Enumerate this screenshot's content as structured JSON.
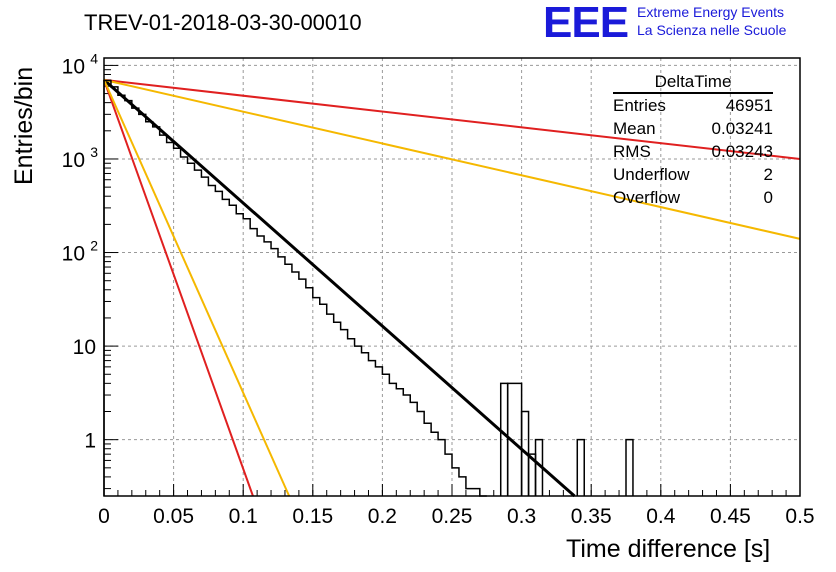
{
  "header": {
    "title": "TREV-01-2018-03-30-00010",
    "logo_letters": "EEE",
    "logo_line1": "Extreme Energy Events",
    "logo_line2": "La Scienza nelle Scuole"
  },
  "stats_box": {
    "title": "DeltaTime",
    "rows": [
      {
        "label": "Entries",
        "value": "46951"
      },
      {
        "label": "Mean",
        "value": "0.03241"
      },
      {
        "label": "RMS",
        "value": "0.03243"
      },
      {
        "label": "Underflow",
        "value": "2"
      },
      {
        "label": "Overflow",
        "value": "0"
      }
    ]
  },
  "colors": {
    "histogram": "#000000",
    "fit": "#000000",
    "red": "#e02020",
    "yellow": "#f5b800",
    "grid": "#9a9a9a",
    "logo": "#1a1ad9"
  },
  "chart_data": {
    "type": "histogram",
    "xlabel": "Time difference [s]",
    "ylabel": "Entries/bin",
    "xlim": [
      0,
      0.5
    ],
    "ylim": [
      0.25,
      12000
    ],
    "yscale": "log",
    "grid": true,
    "x_ticks": [
      "0",
      "0.05",
      "0.1",
      "0.15",
      "0.2",
      "0.25",
      "0.3",
      "0.35",
      "0.4",
      "0.45",
      "0.5"
    ],
    "y_ticks": [
      {
        "label": "1",
        "value": 1
      },
      {
        "label": "10",
        "value": 10
      },
      {
        "label": "10",
        "sup": "2",
        "value": 100
      },
      {
        "label": "10",
        "sup": "3",
        "value": 1000
      },
      {
        "label": "10",
        "sup": "4",
        "value": 10000
      }
    ],
    "bin_width": 0.005,
    "bin_values": [
      6900,
      5900,
      4800,
      4200,
      3500,
      3000,
      2500,
      2200,
      1800,
      1500,
      1300,
      1050,
      900,
      760,
      640,
      520,
      450,
      370,
      320,
      260,
      230,
      180,
      150,
      130,
      110,
      90,
      75,
      62,
      52,
      42,
      33,
      28,
      22,
      18,
      15,
      12,
      10,
      8.5,
      7,
      6,
      5,
      4,
      3.5,
      3,
      2.5,
      2,
      1.5,
      1.2,
      1,
      0.7,
      0.5,
      0.4,
      0.3,
      0.3,
      0.2
    ],
    "bin_values_note_free": true,
    "fit_curves": [
      {
        "color": "black",
        "points": [
          [
            0,
            7000
          ],
          [
            0.338,
            0.25
          ]
        ]
      },
      {
        "color": "red",
        "points": [
          [
            0,
            7000
          ],
          [
            0.5,
            1000
          ]
        ]
      },
      {
        "color": "yellow",
        "points": [
          [
            0,
            7000
          ],
          [
            0.5,
            140
          ]
        ]
      },
      {
        "color": "red",
        "points": [
          [
            0,
            7000
          ],
          [
            0.107,
            0.25
          ]
        ]
      },
      {
        "color": "yellow",
        "points": [
          [
            0,
            7000
          ],
          [
            0.133,
            0.25
          ]
        ]
      }
    ]
  }
}
